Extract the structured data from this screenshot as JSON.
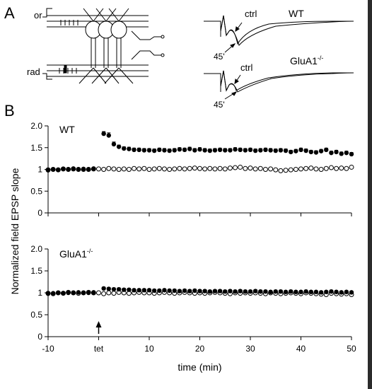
{
  "panels": {
    "a_letter": "A",
    "b_letter": "B",
    "schematic": {
      "label_or": "or",
      "label_rad": "rad"
    },
    "traces": [
      {
        "genotype": "WT",
        "ctrl_label": "ctrl",
        "time_label": "45'"
      },
      {
        "genotype": "GluA1",
        "genotype_sup": "-/-",
        "ctrl_label": "ctrl",
        "time_label": "45'"
      }
    ]
  },
  "chart_data": {
    "type": "scatter",
    "ylabel": "Normalized field EPSP slope",
    "xlabel": "time (min)",
    "xlim": [
      -10,
      50
    ],
    "x_ticks": [
      "-10",
      "tet",
      "10",
      "20",
      "30",
      "40",
      "50"
    ],
    "x_tick_values": [
      -10,
      0,
      10,
      20,
      30,
      40,
      50
    ],
    "tetanus_marker_x": 0,
    "panels": [
      {
        "title": "WT",
        "ylim": [
          0,
          2.0
        ],
        "y_ticks": [
          "0",
          "0.5",
          "1",
          "1.5",
          "2.0"
        ],
        "y_tick_values": [
          0,
          0.5,
          1,
          1.5,
          2.0
        ],
        "series": [
          {
            "style": "filled",
            "error_bars": true,
            "x": [
              -10,
              -9,
              -8,
              -7,
              -6,
              -5,
              -4,
              -3,
              -2,
              -1,
              0,
              1,
              2,
              3,
              4,
              5,
              6,
              7,
              8,
              9,
              10,
              11,
              12,
              13,
              14,
              15,
              16,
              17,
              18,
              19,
              20,
              21,
              22,
              23,
              24,
              25,
              26,
              27,
              28,
              29,
              30,
              31,
              32,
              33,
              34,
              35,
              36,
              37,
              38,
              39,
              40,
              41,
              42,
              43,
              44,
              45,
              46,
              47,
              48,
              49,
              50
            ],
            "y": [
              0.98,
              1.0,
              0.99,
              1.01,
              1.0,
              1.02,
              1.0,
              1.01,
              1.0,
              1.02,
              null,
              1.82,
              1.78,
              1.58,
              1.52,
              1.48,
              1.47,
              1.45,
              1.45,
              1.44,
              1.44,
              1.43,
              1.45,
              1.44,
              1.43,
              1.44,
              1.46,
              1.45,
              1.47,
              1.44,
              1.46,
              1.44,
              1.43,
              1.44,
              1.45,
              1.44,
              1.44,
              1.46,
              1.45,
              1.44,
              1.45,
              1.43,
              1.44,
              1.45,
              1.44,
              1.43,
              1.44,
              1.43,
              1.4,
              1.42,
              1.45,
              1.43,
              1.4,
              1.39,
              1.42,
              1.45,
              1.38,
              1.4,
              1.36,
              1.38,
              1.35
            ],
            "err": [
              0.02,
              0.02,
              0.02,
              0.02,
              0.02,
              0.02,
              0.02,
              0.02,
              0.02,
              0.02,
              null,
              0.05,
              0.06,
              0.05,
              0.04,
              0.04,
              0.04,
              0.04,
              0.04,
              0.04,
              0.04,
              0.04,
              0.04,
              0.04,
              0.04,
              0.04,
              0.04,
              0.04,
              0.04,
              0.04,
              0.04,
              0.04,
              0.04,
              0.04,
              0.04,
              0.04,
              0.04,
              0.04,
              0.04,
              0.04,
              0.04,
              0.04,
              0.04,
              0.04,
              0.04,
              0.04,
              0.04,
              0.04,
              0.04,
              0.04,
              0.04,
              0.04,
              0.04,
              0.04,
              0.04,
              0.04,
              0.04,
              0.04,
              0.04,
              0.04,
              0.04
            ]
          },
          {
            "style": "open",
            "error_bars": false,
            "x": [
              -10,
              -9,
              -8,
              -7,
              -6,
              -5,
              -4,
              -3,
              -2,
              -1,
              0,
              1,
              2,
              3,
              4,
              5,
              6,
              7,
              8,
              9,
              10,
              11,
              12,
              13,
              14,
              15,
              16,
              17,
              18,
              19,
              20,
              21,
              22,
              23,
              24,
              25,
              26,
              27,
              28,
              29,
              30,
              31,
              32,
              33,
              34,
              35,
              36,
              37,
              38,
              39,
              40,
              41,
              42,
              43,
              44,
              45,
              46,
              47,
              48,
              49,
              50
            ],
            "y": [
              0.99,
              1.0,
              0.99,
              1.01,
              1.0,
              1.01,
              1.0,
              1.0,
              1.0,
              1.01,
              1.01,
              1.0,
              1.02,
              1.01,
              1.0,
              1.01,
              1.0,
              1.02,
              1.01,
              1.02,
              1.0,
              1.01,
              1.02,
              1.01,
              1.0,
              1.01,
              1.02,
              1.01,
              1.02,
              1.03,
              1.02,
              1.01,
              1.02,
              1.01,
              1.02,
              1.01,
              1.03,
              1.04,
              1.05,
              1.02,
              1.03,
              1.01,
              1.02,
              1.0,
              1.01,
              0.99,
              0.97,
              0.98,
              0.99,
              1.0,
              1.01,
              1.02,
              1.03,
              1.01,
              1.0,
              1.02,
              1.04,
              1.02,
              1.03,
              1.02,
              1.05
            ]
          }
        ]
      },
      {
        "title": "GluA1",
        "title_sup": "-/-",
        "ylim": [
          0,
          2.0
        ],
        "y_ticks": [
          "0",
          "0.5",
          "1",
          "1.5",
          "2.0"
        ],
        "y_tick_values": [
          0,
          0.5,
          1,
          1.5,
          2.0
        ],
        "series": [
          {
            "style": "filled",
            "error_bars": true,
            "x": [
              -10,
              -9,
              -8,
              -7,
              -6,
              -5,
              -4,
              -3,
              -2,
              -1,
              0,
              1,
              2,
              3,
              4,
              5,
              6,
              7,
              8,
              9,
              10,
              11,
              12,
              13,
              14,
              15,
              16,
              17,
              18,
              19,
              20,
              21,
              22,
              23,
              24,
              25,
              26,
              27,
              28,
              29,
              30,
              31,
              32,
              33,
              34,
              35,
              36,
              37,
              38,
              39,
              40,
              41,
              42,
              43,
              44,
              45,
              46,
              47,
              48,
              49,
              50
            ],
            "y": [
              0.98,
              0.99,
              1.0,
              0.99,
              1.0,
              1.0,
              1.01,
              1.0,
              1.0,
              1.01,
              null,
              1.1,
              1.09,
              1.08,
              1.08,
              1.07,
              1.07,
              1.06,
              1.06,
              1.06,
              1.06,
              1.05,
              1.05,
              1.06,
              1.05,
              1.05,
              1.04,
              1.05,
              1.04,
              1.05,
              1.04,
              1.04,
              1.03,
              1.04,
              1.04,
              1.03,
              1.04,
              1.03,
              1.04,
              1.03,
              1.03,
              1.04,
              1.03,
              1.03,
              1.02,
              1.03,
              1.03,
              1.02,
              1.03,
              1.02,
              1.02,
              1.03,
              1.02,
              1.02,
              1.01,
              1.02,
              1.03,
              1.02,
              1.01,
              1.02,
              1.01
            ],
            "err": [
              0.02,
              0.02,
              0.02,
              0.02,
              0.02,
              0.02,
              0.02,
              0.02,
              0.02,
              0.02,
              null,
              0.03,
              0.03,
              0.03,
              0.03,
              0.03,
              0.03,
              0.03,
              0.03,
              0.03,
              0.03,
              0.03,
              0.03,
              0.03,
              0.03,
              0.03,
              0.03,
              0.03,
              0.03,
              0.03,
              0.03,
              0.03,
              0.03,
              0.03,
              0.03,
              0.03,
              0.03,
              0.03,
              0.03,
              0.03,
              0.03,
              0.03,
              0.03,
              0.03,
              0.03,
              0.03,
              0.03,
              0.03,
              0.03,
              0.03,
              0.03,
              0.03,
              0.03,
              0.03,
              0.03,
              0.03,
              0.03,
              0.03,
              0.03,
              0.03,
              0.03
            ]
          },
          {
            "style": "open",
            "error_bars": false,
            "x": [
              -10,
              -9,
              -8,
              -7,
              -6,
              -5,
              -4,
              -3,
              -2,
              -1,
              0,
              1,
              2,
              3,
              4,
              5,
              6,
              7,
              8,
              9,
              10,
              11,
              12,
              13,
              14,
              15,
              16,
              17,
              18,
              19,
              20,
              21,
              22,
              23,
              24,
              25,
              26,
              27,
              28,
              29,
              30,
              31,
              32,
              33,
              34,
              35,
              36,
              37,
              38,
              39,
              40,
              41,
              42,
              43,
              44,
              45,
              46,
              47,
              48,
              49,
              50
            ],
            "y": [
              0.99,
              0.98,
              1.0,
              0.99,
              1.01,
              1.0,
              0.99,
              1.0,
              1.01,
              1.0,
              1.0,
              0.98,
              1.0,
              0.99,
              1.01,
              1.0,
              0.99,
              1.0,
              1.01,
              1.0,
              1.0,
              0.99,
              1.0,
              1.01,
              1.0,
              0.99,
              1.0,
              1.01,
              1.0,
              0.99,
              1.0,
              0.99,
              1.0,
              1.01,
              1.0,
              0.99,
              0.98,
              1.0,
              0.99,
              1.0,
              0.99,
              1.0,
              0.99,
              0.98,
              1.0,
              0.99,
              0.98,
              0.99,
              1.0,
              0.99,
              0.98,
              1.0,
              0.99,
              0.98,
              0.97,
              0.96,
              0.99,
              0.98,
              0.97,
              0.98,
              0.96
            ]
          }
        ]
      }
    ]
  }
}
